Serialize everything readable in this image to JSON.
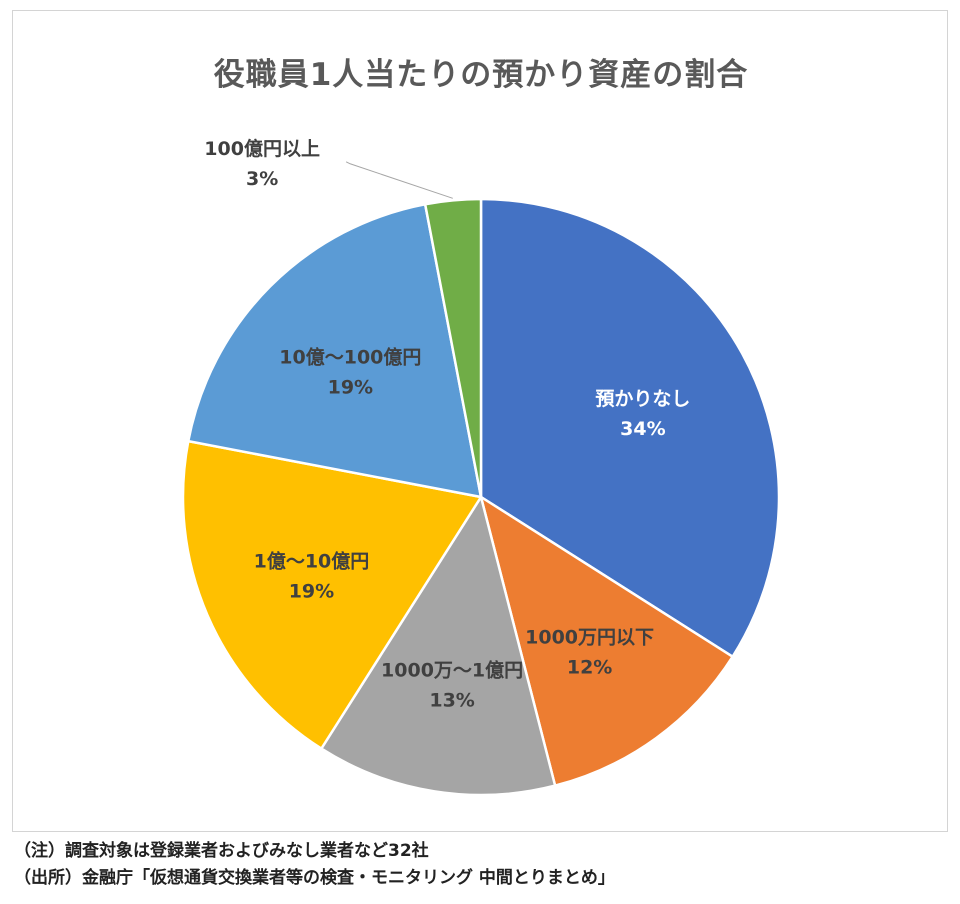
{
  "chart_data": {
    "type": "pie",
    "title": "役職員1人当たりの預かり資産の割合",
    "start_angle_deg": 0,
    "direction": "clockwise",
    "slices": [
      {
        "label": "預かりなし",
        "value": 34,
        "value_label": "34%",
        "color": "#4472C4",
        "label_color": "#ffffff"
      },
      {
        "label": "1000万円以下",
        "value": 12,
        "value_label": "12%",
        "color": "#ED7D31",
        "label_color": "#404040"
      },
      {
        "label": "1000万～1億円",
        "value": 13,
        "value_label": "13%",
        "color": "#A5A5A5",
        "label_color": "#404040"
      },
      {
        "label": "1億～10億円",
        "value": 19,
        "value_label": "19%",
        "color": "#FFC000",
        "label_color": "#404040"
      },
      {
        "label": "10億～100億円",
        "value": 19,
        "value_label": "19%",
        "color": "#5B9BD5",
        "label_color": "#404040"
      },
      {
        "label": "100億円以上",
        "value": 3,
        "value_label": "3%",
        "color": "#70AD47",
        "label_color": "#404040",
        "label_outside": true
      }
    ],
    "legend": "none"
  },
  "notes": [
    "（注）調査対象は登録業者およびみなし業者など32社",
    "（出所）金融庁「仮想通貨交換業者等の検査・モニタリング 中間とりまとめ」"
  ]
}
